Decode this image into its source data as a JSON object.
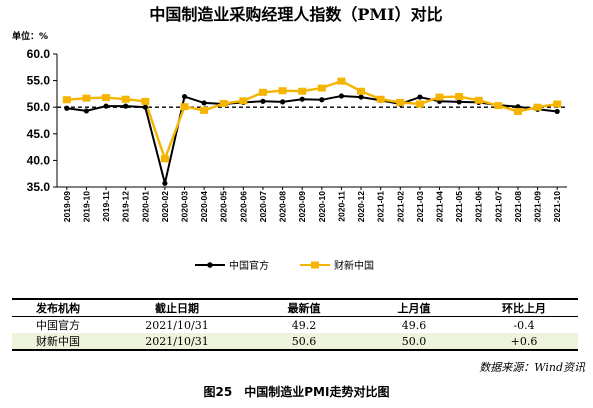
{
  "chart_data": {
    "type": "line",
    "title": "中国制造业采购经理人指数（PMI）对比",
    "ylabel": "单位：%",
    "ylim": [
      35,
      60
    ],
    "yticks": [
      "35.0",
      "40.0",
      "45.0",
      "50.0",
      "55.0",
      "60.0"
    ],
    "reference_line": 50,
    "grid": false,
    "legend_position": "bottom",
    "categories": [
      "2019-09",
      "2019-10",
      "2019-11",
      "2019-12",
      "2020-01",
      "2020-02",
      "2020-03",
      "2020-04",
      "2020-05",
      "2020-06",
      "2020-07",
      "2020-08",
      "2020-09",
      "2020-10",
      "2020-11",
      "2020-12",
      "2021-01",
      "2021-02",
      "2021-03",
      "2021-04",
      "2021-05",
      "2021-06",
      "2021-07",
      "2021-08",
      "2021-09",
      "2021-10"
    ],
    "series": [
      {
        "name": "中国官方",
        "color": "#000000",
        "values": [
          49.8,
          49.3,
          50.2,
          50.2,
          50.0,
          35.7,
          52.0,
          50.8,
          50.6,
          50.9,
          51.1,
          51.0,
          51.5,
          51.4,
          52.1,
          51.9,
          51.3,
          50.6,
          51.9,
          51.1,
          51.0,
          50.9,
          50.4,
          50.1,
          49.6,
          49.2
        ]
      },
      {
        "name": "财新中国",
        "color": "#f5b400",
        "values": [
          51.4,
          51.7,
          51.8,
          51.5,
          51.1,
          40.3,
          50.1,
          49.4,
          50.7,
          51.2,
          52.8,
          53.1,
          53.0,
          53.6,
          54.9,
          53.0,
          51.5,
          50.9,
          50.6,
          51.9,
          52.0,
          51.3,
          50.3,
          49.2,
          50.0,
          50.6
        ]
      }
    ]
  },
  "table": {
    "headers": [
      "发布机构",
      "截止日期",
      "最新值",
      "上月值",
      "环比上月"
    ],
    "rows": [
      [
        "中国官方",
        "2021/10/31",
        "49.2",
        "49.6",
        "-0.4"
      ],
      [
        "财新中国",
        "2021/10/31",
        "50.6",
        "50.0",
        "+0.6"
      ]
    ]
  },
  "source": "数据来源：Wind资讯",
  "caption": "图25　中国制造业PMI走势对比图"
}
